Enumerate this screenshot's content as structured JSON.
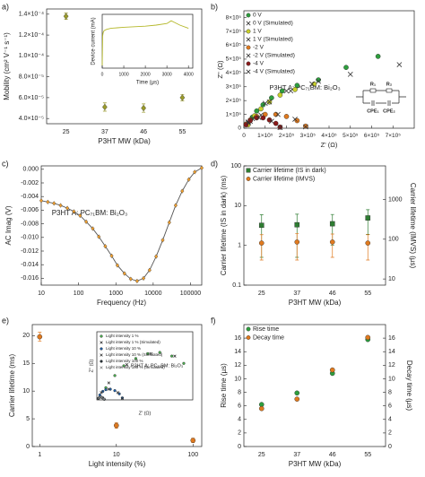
{
  "chart_data": [
    {
      "type": "scatter",
      "panel_label": "a)",
      "x_label": "P3HT MW (kDa)",
      "y_label": "Mobility (cm² V⁻¹ s⁻¹)",
      "categories": [
        "25",
        "37",
        "46",
        "55"
      ],
      "ylim": [
        3.5e-05,
        0.000145
      ],
      "yticks": [
        {
          "value": 4e-05,
          "label": "4.0×10⁻⁵"
        },
        {
          "value": 6e-05,
          "label": "6.0×10⁻⁵"
        },
        {
          "value": 8e-05,
          "label": "8.0×10⁻⁵"
        },
        {
          "value": 0.0001,
          "label": "1.0×10⁻⁴"
        },
        {
          "value": 0.00012,
          "label": "1.2×10⁻⁴"
        },
        {
          "value": 0.00014,
          "label": "1.4×10⁻⁴"
        }
      ],
      "series": [
        {
          "color": "#9a9a2a",
          "marker": "diamond",
          "values": [
            0.000138,
            5.1e-05,
            5e-05,
            6e-05
          ],
          "errors": [
            3e-06,
            4e-06,
            4e-06,
            3e-06
          ]
        }
      ]
    },
    {
      "type": "line",
      "x_label": "Time (µs)",
      "y_label": "Device current (mA)",
      "xlim": [
        0,
        4200
      ],
      "xticks": [
        0,
        1000,
        2000,
        3000,
        4000
      ],
      "ylim": [
        0,
        1
      ],
      "series": [
        {
          "color": "#b5b82a",
          "x": [
            0,
            20,
            40,
            60,
            100,
            200,
            400,
            700,
            1000,
            1500,
            2000,
            2500,
            3000,
            3200,
            3300,
            3600,
            4000
          ],
          "values": [
            0.05,
            0.6,
            0.65,
            0.68,
            0.7,
            0.72,
            0.74,
            0.75,
            0.76,
            0.77,
            0.78,
            0.8,
            0.83,
            0.88,
            0.86,
            0.8,
            0.74
          ]
        }
      ]
    },
    {
      "type": "scatter",
      "panel_label": "b)",
      "x_label": "Z' (Ω)",
      "y_label": "Z'' (Ω)",
      "xlim": [
        0,
        800000
      ],
      "xticks": [
        0,
        {
          "value": 100000,
          "label": "1×10⁵"
        },
        {
          "value": 200000,
          "label": "2×10⁵"
        },
        {
          "value": 300000,
          "label": "3×10⁵"
        },
        {
          "value": 400000,
          "label": "4×10⁵"
        },
        {
          "value": 500000,
          "label": "5×10⁵"
        },
        {
          "value": 600000,
          "label": "6×10⁵"
        },
        {
          "value": 700000,
          "label": "7×10⁵"
        }
      ],
      "ylim": [
        0,
        850000
      ],
      "yticks": [
        0,
        {
          "value": 100000,
          "label": "1×10⁵"
        },
        {
          "value": 200000,
          "label": "2×10⁵"
        },
        {
          "value": 300000,
          "label": "3×10⁵"
        },
        {
          "value": 400000,
          "label": "4×10⁵"
        },
        {
          "value": 500000,
          "label": "5×10⁵"
        },
        {
          "value": 600000,
          "label": "6×10⁵"
        },
        {
          "value": 700000,
          "label": "7×10⁵"
        },
        {
          "value": 800000,
          "label": "8×10⁵"
        }
      ],
      "legend": "upper left",
      "annotations": [
        "P3HT A: PC₇₁BM: Bi₂O₃"
      ],
      "circuit_labels": [
        "R₁",
        "R₂",
        "CPE₁",
        "CPE₂"
      ],
      "series": [
        {
          "name": "0 V",
          "color": "#2e9e3e",
          "marker": "circle",
          "x": [
            20000,
            40000,
            60000,
            90000,
            130000,
            180000,
            250000,
            350000,
            480000,
            630000
          ],
          "values": [
            30000,
            80000,
            125000,
            170000,
            220000,
            270000,
            310000,
            350000,
            440000,
            520000
          ]
        },
        {
          "name": "0 V (Simulated)",
          "color": "#333333",
          "marker": "x",
          "x": [
            30000,
            100000,
            200000,
            350000,
            500000,
            730000
          ],
          "values": [
            50000,
            180000,
            270000,
            340000,
            390000,
            460000
          ]
        },
        {
          "name": "1 V",
          "color": "#c9d12a",
          "marker": "circle",
          "x": [
            20000,
            50000,
            80000,
            120000,
            170000,
            240000,
            330000
          ],
          "values": [
            25000,
            90000,
            140000,
            190000,
            240000,
            280000,
            320000
          ]
        },
        {
          "name": "1 V (Simulated)",
          "color": "#333333",
          "marker": "x",
          "x": [
            40000,
            120000,
            220000,
            320000
          ],
          "values": [
            70000,
            190000,
            270000,
            320000
          ]
        },
        {
          "name": "-2 V",
          "color": "#e07a1f",
          "marker": "circle",
          "x": [
            10000,
            30000,
            60000,
            100000,
            150000,
            200000,
            250000,
            290000
          ],
          "values": [
            30000,
            60000,
            85000,
            100000,
            100000,
            85000,
            55000,
            15000
          ]
        },
        {
          "name": "-2 V (Simulated)",
          "color": "#333333",
          "marker": "x",
          "x": [
            20000,
            80000,
            160000,
            240000,
            290000
          ],
          "values": [
            45000,
            95000,
            100000,
            65000,
            10000
          ]
        },
        {
          "name": "-4 V",
          "color": "#8b1a1a",
          "marker": "circle",
          "x": [
            10000,
            30000,
            60000,
            90000,
            120000,
            150000,
            170000
          ],
          "values": [
            25000,
            55000,
            75000,
            75000,
            60000,
            35000,
            8000
          ]
        },
        {
          "name": "-4 V (Simulated)",
          "color": "#333333",
          "marker": "x",
          "x": [
            20000,
            70000,
            130000,
            170000
          ],
          "values": [
            40000,
            78000,
            50000,
            5000
          ]
        }
      ]
    },
    {
      "type": "line",
      "panel_label": "c)",
      "x_label": "Frequency (Hz)",
      "y_label": "AC Imag (V)",
      "x_log": true,
      "xlim": [
        10,
        200000
      ],
      "xticks": [
        10,
        100,
        1000,
        10000,
        100000
      ],
      "ylim": [
        -0.017,
        0.0005
      ],
      "yticks": [
        {
          "value": 0,
          "label": "0.000"
        },
        {
          "value": -0.002,
          "label": "-0.002"
        },
        {
          "value": -0.004,
          "label": "-0.004"
        },
        {
          "value": -0.006,
          "label": "-0.006"
        },
        {
          "value": -0.008,
          "label": "-0.008"
        },
        {
          "value": -0.01,
          "label": "-0.010"
        },
        {
          "value": -0.012,
          "label": "-0.012"
        },
        {
          "value": -0.014,
          "label": "-0.014"
        },
        {
          "value": -0.016,
          "label": "-0.016"
        }
      ],
      "annotations": [
        "P3HT A: PC₇₁BM: Bi₂O₃"
      ],
      "series": [
        {
          "color": "#f0a030",
          "line_color": "#555555",
          "marker": "diamond",
          "x": [
            10,
            15,
            22,
            33,
            50,
            75,
            110,
            160,
            240,
            350,
            520,
            770,
            1100,
            1700,
            2500,
            3700,
            5500,
            8000,
            12000,
            18000,
            27000,
            40000,
            60000,
            90000,
            130000,
            200000
          ],
          "values": [
            -0.0046,
            -0.0048,
            -0.005,
            -0.0053,
            -0.0057,
            -0.0062,
            -0.0068,
            -0.0077,
            -0.0087,
            -0.0099,
            -0.0113,
            -0.0127,
            -0.0141,
            -0.0153,
            -0.0161,
            -0.0164,
            -0.016,
            -0.0148,
            -0.0128,
            -0.0104,
            -0.0078,
            -0.0053,
            -0.0032,
            -0.0015,
            -0.0004,
            0.0002
          ]
        }
      ]
    },
    {
      "type": "scatter",
      "panel_label": "d)",
      "x_label": "P3HT MW (kDa)",
      "y_label": "Carrier lifetime (IS in dark) (ms)",
      "y2_label": "Carrier lifetime (IMVS) (µs)",
      "categories": [
        "25",
        "37",
        "46",
        "55"
      ],
      "y_log": true,
      "ylim": [
        0.1,
        100
      ],
      "yticks": [
        0.1,
        1,
        10,
        100
      ],
      "y2_log": true,
      "y2lim": [
        7,
        7000
      ],
      "y2ticks": [
        10,
        100,
        1000
      ],
      "legend": "upper left",
      "series": [
        {
          "name": "Carrier lifetime (IS in dark)",
          "color": "#2e7d32",
          "marker": "square",
          "values": [
            3.2,
            3.3,
            3.5,
            4.9
          ],
          "errors": [
            2.7,
            2.8,
            2.5,
            3.0
          ]
        },
        {
          "name": "Carrier lifetime (IMVS)",
          "color": "#e07a1f",
          "marker": "circle",
          "axis": "y2",
          "values": [
            80,
            85,
            85,
            80
          ],
          "errors": [
            50,
            55,
            50,
            50
          ]
        }
      ]
    },
    {
      "type": "scatter",
      "panel_label": "e)",
      "x_label": "Light intensity (%)",
      "y_label": "Carrier lifetime (ms)",
      "x_log": true,
      "xlim": [
        0.8,
        130
      ],
      "xticks": [
        1,
        10,
        100
      ],
      "ylim": [
        0,
        22
      ],
      "yticks": [
        0,
        5,
        10,
        15,
        20
      ],
      "series": [
        {
          "color": "#e07a1f",
          "marker": "circle",
          "x": [
            1,
            10,
            100
          ],
          "values": [
            19.8,
            3.8,
            1.1
          ],
          "errors": [
            0.8,
            0.5,
            0.4
          ]
        }
      ]
    },
    {
      "type": "scatter",
      "x_label": "Z' (Ω)",
      "y_label": "Z'' (Ω)",
      "xlim": [
        0,
        3200000
      ],
      "ylim": [
        0,
        2800000
      ],
      "legend": "upper left",
      "annotations": [
        "P3HT A: PC₇₁BM: Bi₂O₃"
      ],
      "series": [
        {
          "name": "Light intensity 1 %",
          "color": "#4caf50",
          "marker": "circle",
          "x": [
            300000,
            600000,
            900000,
            1300000,
            1700000,
            2100000,
            2500000,
            2900000
          ],
          "values": [
            500000,
            1000000,
            1400000,
            1700000,
            1900000,
            1950000,
            1800000,
            1500000
          ]
        },
        {
          "name": "Light intensity 1 % (Simulated)",
          "color": "#333333",
          "marker": "x",
          "x": [
            400000,
            1000000,
            1800000,
            2600000
          ],
          "values": [
            700000,
            1450000,
            1900000,
            1800000
          ]
        },
        {
          "name": "Light intensity 10 %",
          "color": "#1f5fa8",
          "marker": "circle",
          "x": [
            100000,
            200000,
            300000,
            450000,
            600000,
            750000,
            850000
          ],
          "values": [
            200000,
            350000,
            420000,
            440000,
            380000,
            250000,
            80000
          ]
        },
        {
          "name": "Light intensity 10 % (Simulated)",
          "color": "#333333",
          "marker": "x",
          "x": [
            150000,
            400000,
            700000,
            850000
          ],
          "values": [
            300000,
            440000,
            300000,
            60000
          ]
        },
        {
          "name": "Light intensity 100 %",
          "color": "#263238",
          "marker": "circle",
          "x": [
            50000,
            100000,
            150000,
            200000,
            250000
          ],
          "values": [
            60000,
            100000,
            110000,
            80000,
            20000
          ]
        },
        {
          "name": "Light intensity 100 % (Simulated)",
          "color": "#888888",
          "marker": "x",
          "x": [
            80000,
            160000,
            240000
          ],
          "values": [
            90000,
            105000,
            30000
          ]
        }
      ]
    },
    {
      "type": "scatter",
      "panel_label": "f)",
      "x_label": "P3HT MW (kDa)",
      "y_label": "Rise time (µs)",
      "y2_label": "Decay time (µs)",
      "categories": [
        "25",
        "37",
        "46",
        "55"
      ],
      "ylim": [
        0,
        18
      ],
      "yticks": [
        0,
        2,
        4,
        6,
        8,
        10,
        12,
        14,
        16
      ],
      "y2lim": [
        0,
        18
      ],
      "y2ticks": [
        0,
        2,
        4,
        6,
        8,
        10,
        12,
        14,
        16
      ],
      "legend": "upper left",
      "series": [
        {
          "name": "Rise time",
          "color": "#2e9e3e",
          "marker": "circle",
          "values": [
            6.2,
            7.9,
            10.8,
            15.8
          ]
        },
        {
          "name": "Decay time",
          "color": "#e07a1f",
          "marker": "circle",
          "axis": "y2",
          "values": [
            5.6,
            7.0,
            11.3,
            16.1
          ]
        }
      ]
    }
  ]
}
